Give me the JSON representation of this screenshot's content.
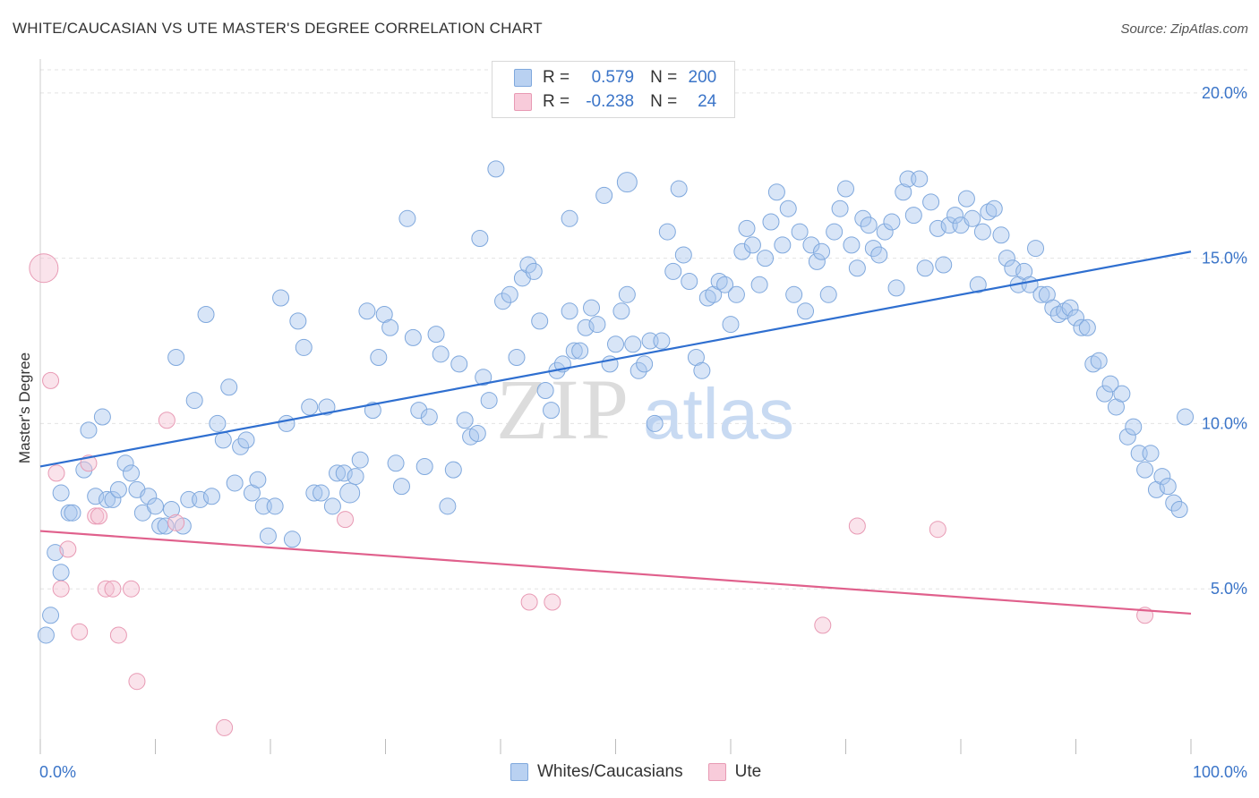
{
  "title": "WHITE/CAUCASIAN VS UTE MASTER'S DEGREE CORRELATION CHART",
  "source": "Source: ZipAtlas.com",
  "colors": {
    "blue": "#7fa8dd",
    "blue_fill": "#a9c6ee",
    "blue_line": "#2f6fd0",
    "pink": "#e89ab4",
    "pink_fill": "#f5c0d2",
    "pink_line": "#e0608c",
    "axis_label": "#3a74c8"
  },
  "legend": {
    "r_label": "R =",
    "n_label": "N =",
    "rows": [
      {
        "r": "0.579",
        "n": "200"
      },
      {
        "r": "-0.238",
        "n": "24"
      }
    ]
  },
  "bottom_legend": [
    "Whites/Caucasians",
    "Ute"
  ],
  "watermark": {
    "zip": "ZIP",
    "atlas": "atlas"
  },
  "chart_data": {
    "type": "scatter",
    "xlabel": "",
    "ylabel": "Master's Degree",
    "xlim": [
      0,
      100
    ],
    "ylim": [
      0,
      20.7
    ],
    "x_tick_labels": [
      "0.0%",
      "100.0%"
    ],
    "y_ticks": [
      5,
      10,
      15,
      20
    ],
    "y_tick_labels": [
      "5.0%",
      "10.0%",
      "15.0%",
      "20.0%"
    ],
    "grid": true,
    "series": [
      {
        "name": "Whites/Caucasians",
        "color": "#7fa8dd",
        "trend": {
          "x": [
            0,
            100
          ],
          "y": [
            8.7,
            15.2
          ]
        },
        "points": [
          [
            0.5,
            3.6
          ],
          [
            0.9,
            4.2
          ],
          [
            1.3,
            6.1
          ],
          [
            1.8,
            5.5
          ],
          [
            1.8,
            7.9
          ],
          [
            2.5,
            7.3
          ],
          [
            2.8,
            7.3
          ],
          [
            3.8,
            8.6
          ],
          [
            4.2,
            9.8
          ],
          [
            4.8,
            7.8
          ],
          [
            5.4,
            10.2
          ],
          [
            5.8,
            7.7
          ],
          [
            6.3,
            7.7
          ],
          [
            6.8,
            8.0
          ],
          [
            7.4,
            8.8
          ],
          [
            7.9,
            8.5
          ],
          [
            8.4,
            8.0
          ],
          [
            8.9,
            7.3
          ],
          [
            9.4,
            7.8
          ],
          [
            10.0,
            7.5
          ],
          [
            10.4,
            6.9
          ],
          [
            10.9,
            6.9
          ],
          [
            11.4,
            7.4
          ],
          [
            11.8,
            12.0
          ],
          [
            12.4,
            6.9
          ],
          [
            12.9,
            7.7
          ],
          [
            13.4,
            10.7
          ],
          [
            13.9,
            7.7
          ],
          [
            14.4,
            13.3
          ],
          [
            14.9,
            7.8
          ],
          [
            15.4,
            10.0
          ],
          [
            15.9,
            9.5
          ],
          [
            16.4,
            11.1
          ],
          [
            16.9,
            8.2
          ],
          [
            17.4,
            9.3
          ],
          [
            17.9,
            9.5
          ],
          [
            18.4,
            7.9
          ],
          [
            18.9,
            8.3
          ],
          [
            19.4,
            7.5
          ],
          [
            19.8,
            6.6
          ],
          [
            20.4,
            7.5
          ],
          [
            20.9,
            13.8
          ],
          [
            21.4,
            10.0
          ],
          [
            21.9,
            6.5
          ],
          [
            22.4,
            13.1
          ],
          [
            22.9,
            12.3
          ],
          [
            23.4,
            10.5
          ],
          [
            23.8,
            7.9
          ],
          [
            24.4,
            7.9
          ],
          [
            24.9,
            10.5
          ],
          [
            25.4,
            7.5
          ],
          [
            25.8,
            8.5
          ],
          [
            26.4,
            8.5
          ],
          [
            26.9,
            7.9
          ],
          [
            27.4,
            8.4
          ],
          [
            27.8,
            8.9
          ],
          [
            28.4,
            13.4
          ],
          [
            28.9,
            10.4
          ],
          [
            29.4,
            12.0
          ],
          [
            29.9,
            13.3
          ],
          [
            30.4,
            12.9
          ],
          [
            30.9,
            8.8
          ],
          [
            31.4,
            8.1
          ],
          [
            31.9,
            16.2
          ],
          [
            32.4,
            12.6
          ],
          [
            32.9,
            10.4
          ],
          [
            33.4,
            8.7
          ],
          [
            33.8,
            10.2
          ],
          [
            34.4,
            12.7
          ],
          [
            34.8,
            12.1
          ],
          [
            35.4,
            7.5
          ],
          [
            35.9,
            8.6
          ],
          [
            36.4,
            11.8
          ],
          [
            36.9,
            10.1
          ],
          [
            37.4,
            9.6
          ],
          [
            38.0,
            9.7
          ],
          [
            38.5,
            11.4
          ],
          [
            39.0,
            10.7
          ],
          [
            39.6,
            17.7
          ],
          [
            40.2,
            13.7
          ],
          [
            40.8,
            13.9
          ],
          [
            41.4,
            12.0
          ],
          [
            41.9,
            14.4
          ],
          [
            42.4,
            14.8
          ],
          [
            42.9,
            14.6
          ],
          [
            43.4,
            13.1
          ],
          [
            43.9,
            11.0
          ],
          [
            44.4,
            10.4
          ],
          [
            44.9,
            11.6
          ],
          [
            45.4,
            11.8
          ],
          [
            46.0,
            13.4
          ],
          [
            46.4,
            12.2
          ],
          [
            46.9,
            12.2
          ],
          [
            47.4,
            12.9
          ],
          [
            47.9,
            13.5
          ],
          [
            48.4,
            13.0
          ],
          [
            49.0,
            16.9
          ],
          [
            49.5,
            11.8
          ],
          [
            50.0,
            12.4
          ],
          [
            50.5,
            13.4
          ],
          [
            51.0,
            13.9
          ],
          [
            51.5,
            12.4
          ],
          [
            52.0,
            11.6
          ],
          [
            52.5,
            11.8
          ],
          [
            53.0,
            12.5
          ],
          [
            53.4,
            10.0
          ],
          [
            54.0,
            12.5
          ],
          [
            54.5,
            15.8
          ],
          [
            55.0,
            14.6
          ],
          [
            55.5,
            17.1
          ],
          [
            55.9,
            15.1
          ],
          [
            56.4,
            14.3
          ],
          [
            57.0,
            12.0
          ],
          [
            57.5,
            11.6
          ],
          [
            58.0,
            13.8
          ],
          [
            58.5,
            13.9
          ],
          [
            59.0,
            14.3
          ],
          [
            59.5,
            14.2
          ],
          [
            60.0,
            13.0
          ],
          [
            60.5,
            13.9
          ],
          [
            61.0,
            15.2
          ],
          [
            61.4,
            15.9
          ],
          [
            61.9,
            15.4
          ],
          [
            62.5,
            14.2
          ],
          [
            63.0,
            15.0
          ],
          [
            63.5,
            16.1
          ],
          [
            64.0,
            17.0
          ],
          [
            64.5,
            15.4
          ],
          [
            65.0,
            16.5
          ],
          [
            65.5,
            13.9
          ],
          [
            66.0,
            15.8
          ],
          [
            66.5,
            13.4
          ],
          [
            67.0,
            15.4
          ],
          [
            67.5,
            14.9
          ],
          [
            67.9,
            15.2
          ],
          [
            68.5,
            13.9
          ],
          [
            69.0,
            15.8
          ],
          [
            69.5,
            16.5
          ],
          [
            70.0,
            17.1
          ],
          [
            70.5,
            15.4
          ],
          [
            71.0,
            14.7
          ],
          [
            71.5,
            16.2
          ],
          [
            72.0,
            16.0
          ],
          [
            72.4,
            15.3
          ],
          [
            72.9,
            15.1
          ],
          [
            73.4,
            15.8
          ],
          [
            74.0,
            16.1
          ],
          [
            74.4,
            14.1
          ],
          [
            75.0,
            17.0
          ],
          [
            75.4,
            17.4
          ],
          [
            75.9,
            16.3
          ],
          [
            76.4,
            17.4
          ],
          [
            76.9,
            14.7
          ],
          [
            77.4,
            16.7
          ],
          [
            78.0,
            15.9
          ],
          [
            78.5,
            14.8
          ],
          [
            79.0,
            16.0
          ],
          [
            79.5,
            16.3
          ],
          [
            80.0,
            16.0
          ],
          [
            80.5,
            16.8
          ],
          [
            81.0,
            16.2
          ],
          [
            81.5,
            14.2
          ],
          [
            81.9,
            15.8
          ],
          [
            82.4,
            16.4
          ],
          [
            82.9,
            16.5
          ],
          [
            83.5,
            15.7
          ],
          [
            84.0,
            15.0
          ],
          [
            84.5,
            14.7
          ],
          [
            85.0,
            14.2
          ],
          [
            85.5,
            14.6
          ],
          [
            86.0,
            14.2
          ],
          [
            86.5,
            15.3
          ],
          [
            87.0,
            13.9
          ],
          [
            87.5,
            13.9
          ],
          [
            88.0,
            13.5
          ],
          [
            88.5,
            13.3
          ],
          [
            89.0,
            13.4
          ],
          [
            89.5,
            13.5
          ],
          [
            90.0,
            13.2
          ],
          [
            90.5,
            12.9
          ],
          [
            91.0,
            12.9
          ],
          [
            91.5,
            11.8
          ],
          [
            92.0,
            11.9
          ],
          [
            92.5,
            10.9
          ],
          [
            93.0,
            11.2
          ],
          [
            93.5,
            10.5
          ],
          [
            94.0,
            10.9
          ],
          [
            94.5,
            9.6
          ],
          [
            95.0,
            9.9
          ],
          [
            95.5,
            9.1
          ],
          [
            96.0,
            8.6
          ],
          [
            96.5,
            9.1
          ],
          [
            97.0,
            8.0
          ],
          [
            97.5,
            8.4
          ],
          [
            98.0,
            8.1
          ],
          [
            98.5,
            7.6
          ],
          [
            99.0,
            7.4
          ],
          [
            99.5,
            10.2
          ],
          [
            38.2,
            15.6
          ],
          [
            46.0,
            16.2
          ],
          [
            51.0,
            17.3
          ]
        ]
      },
      {
        "name": "Ute",
        "color": "#e89ab4",
        "trend": {
          "x": [
            0,
            100
          ],
          "y": [
            6.75,
            4.25
          ]
        },
        "points": [
          [
            0.3,
            14.7
          ],
          [
            0.9,
            11.3
          ],
          [
            1.4,
            8.5
          ],
          [
            1.8,
            5.0
          ],
          [
            2.4,
            6.2
          ],
          [
            3.4,
            3.7
          ],
          [
            4.2,
            8.8
          ],
          [
            4.8,
            7.2
          ],
          [
            5.1,
            7.2
          ],
          [
            5.7,
            5.0
          ],
          [
            6.3,
            5.0
          ],
          [
            6.8,
            3.6
          ],
          [
            7.9,
            5.0
          ],
          [
            8.4,
            2.2
          ],
          [
            11.8,
            7.0
          ],
          [
            11.0,
            10.1
          ],
          [
            16.0,
            0.8
          ],
          [
            26.5,
            7.1
          ],
          [
            42.5,
            4.6
          ],
          [
            44.5,
            4.6
          ],
          [
            68.0,
            3.9
          ],
          [
            71.0,
            6.9
          ],
          [
            78.0,
            6.8
          ],
          [
            96.0,
            4.2
          ]
        ]
      }
    ]
  }
}
